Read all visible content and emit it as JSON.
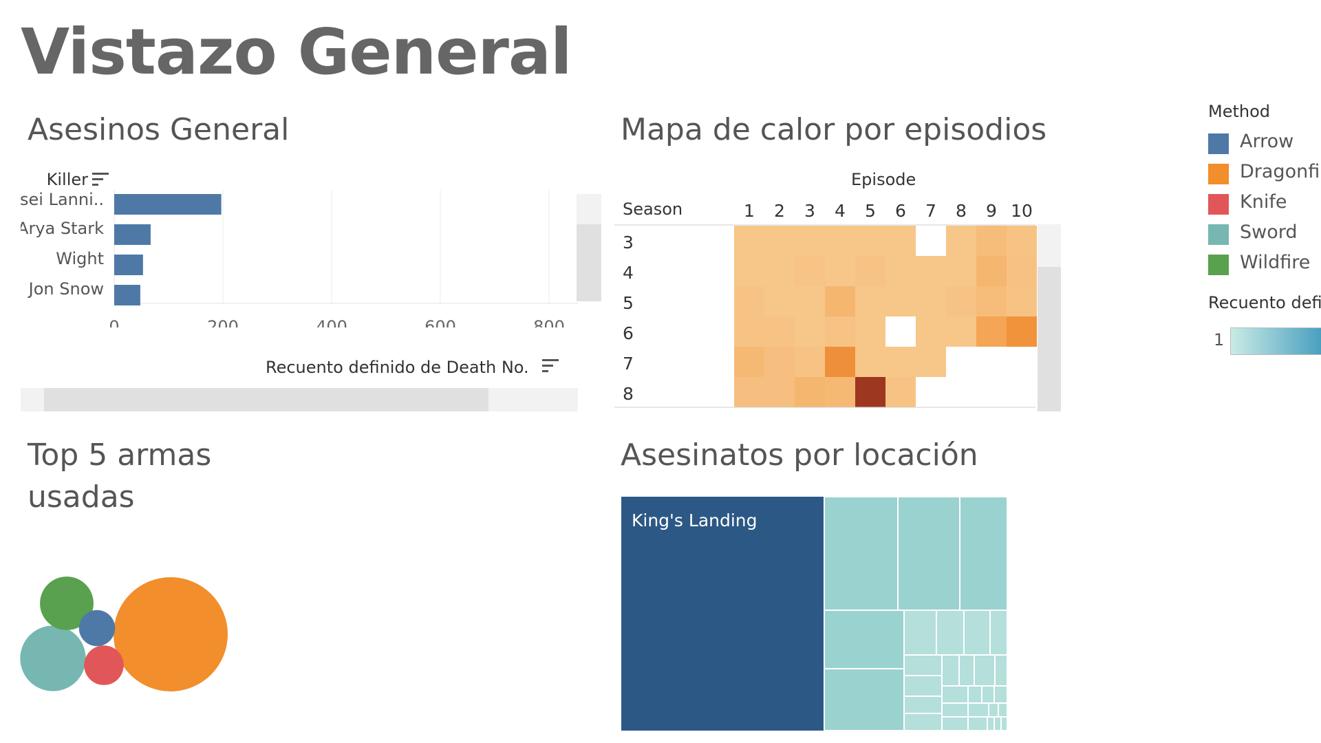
{
  "dashboard": {
    "title": "Vistazo General"
  },
  "killers_panel": {
    "title": "Asesinos General",
    "row_header": "Killer",
    "axis_title": "Recuento definido de Death No.",
    "tick_labels": [
      "0",
      "200",
      "400",
      "600",
      "800"
    ],
    "rows": [
      {
        "label": "Cersei Lannister",
        "display": "rsei Lanni..",
        "value": 197
      },
      {
        "label": "Arya Stark",
        "display": "Arya Stark",
        "value": 67
      },
      {
        "label": "Wight",
        "display": "Wight",
        "value": 53
      },
      {
        "label": "Jon Snow",
        "display": "Jon Snow",
        "value": 48
      }
    ]
  },
  "heatmap_panel": {
    "title": "Mapa de calor por episodios",
    "column_header": "Episode",
    "row_header": "Season",
    "episodes": [
      "1",
      "2",
      "3",
      "4",
      "5",
      "6",
      "7",
      "8",
      "9",
      "10"
    ],
    "seasons": [
      "3",
      "4",
      "5",
      "6",
      "7",
      "8"
    ]
  },
  "weapons_panel": {
    "title_line1": "Top 5 armas",
    "title_line2": "usadas"
  },
  "location_panel": {
    "title": "Asesinatos por locación",
    "largest_label": "King's Landing"
  },
  "legend": {
    "method_title": "Method",
    "items": [
      {
        "label": "Arrow",
        "color": "#4e79a7"
      },
      {
        "label": "Dragonfire",
        "color": "#f28e2b"
      },
      {
        "label": "Knife",
        "color": "#e15759"
      },
      {
        "label": "Sword",
        "color": "#76b7b2"
      },
      {
        "label": "Wildfire",
        "color": "#59a14f"
      }
    ],
    "count_title": "Recuento definido de Death No.",
    "count_min": "1",
    "gradient_from": "#c9ebe5",
    "gradient_to": "#2e8fb8"
  },
  "chart_data": [
    {
      "type": "bar",
      "title": "Asesinos General",
      "xlabel": "Recuento definido de Death No.",
      "ylabel": "Killer",
      "categories": [
        "Cersei Lannister",
        "Arya Stark",
        "Wight",
        "Jon Snow"
      ],
      "values": [
        197,
        67,
        53,
        48
      ],
      "xlim": [
        0,
        840
      ],
      "orientation": "horizontal",
      "grid": true
    },
    {
      "type": "heatmap",
      "title": "Mapa de calor por episodios",
      "xlabel": "Episode",
      "ylabel": "Season",
      "x": [
        1,
        2,
        3,
        4,
        5,
        6,
        7,
        8,
        9,
        10
      ],
      "y": [
        3,
        4,
        5,
        6,
        7,
        8
      ],
      "values": [
        [
          12,
          12,
          12,
          12,
          12,
          12,
          null,
          12,
          18,
          14
        ],
        [
          12,
          12,
          13,
          12,
          14,
          12,
          12,
          12,
          22,
          15
        ],
        [
          14,
          12,
          12,
          22,
          12,
          12,
          12,
          14,
          18,
          14
        ],
        [
          14,
          14,
          12,
          14,
          12,
          null,
          12,
          12,
          32,
          44
        ],
        [
          20,
          16,
          14,
          48,
          12,
          12,
          12,
          null,
          null,
          null
        ],
        [
          16,
          16,
          22,
          20,
          150,
          14,
          null,
          null,
          null,
          null
        ]
      ]
    },
    {
      "type": "bubble",
      "title": "Top 5 armas usadas",
      "categories": [
        "Dragonfire",
        "Sword",
        "Wildfire",
        "Knife",
        "Arrow"
      ],
      "values": [
        1000,
        330,
        220,
        120,
        100
      ],
      "colors": [
        "#f28e2b",
        "#76b7b2",
        "#59a14f",
        "#e15759",
        "#4e79a7"
      ]
    },
    {
      "type": "treemap",
      "title": "Asesinatos por locación",
      "categories": [
        "King's Landing"
      ],
      "values": [
        1000
      ]
    }
  ]
}
